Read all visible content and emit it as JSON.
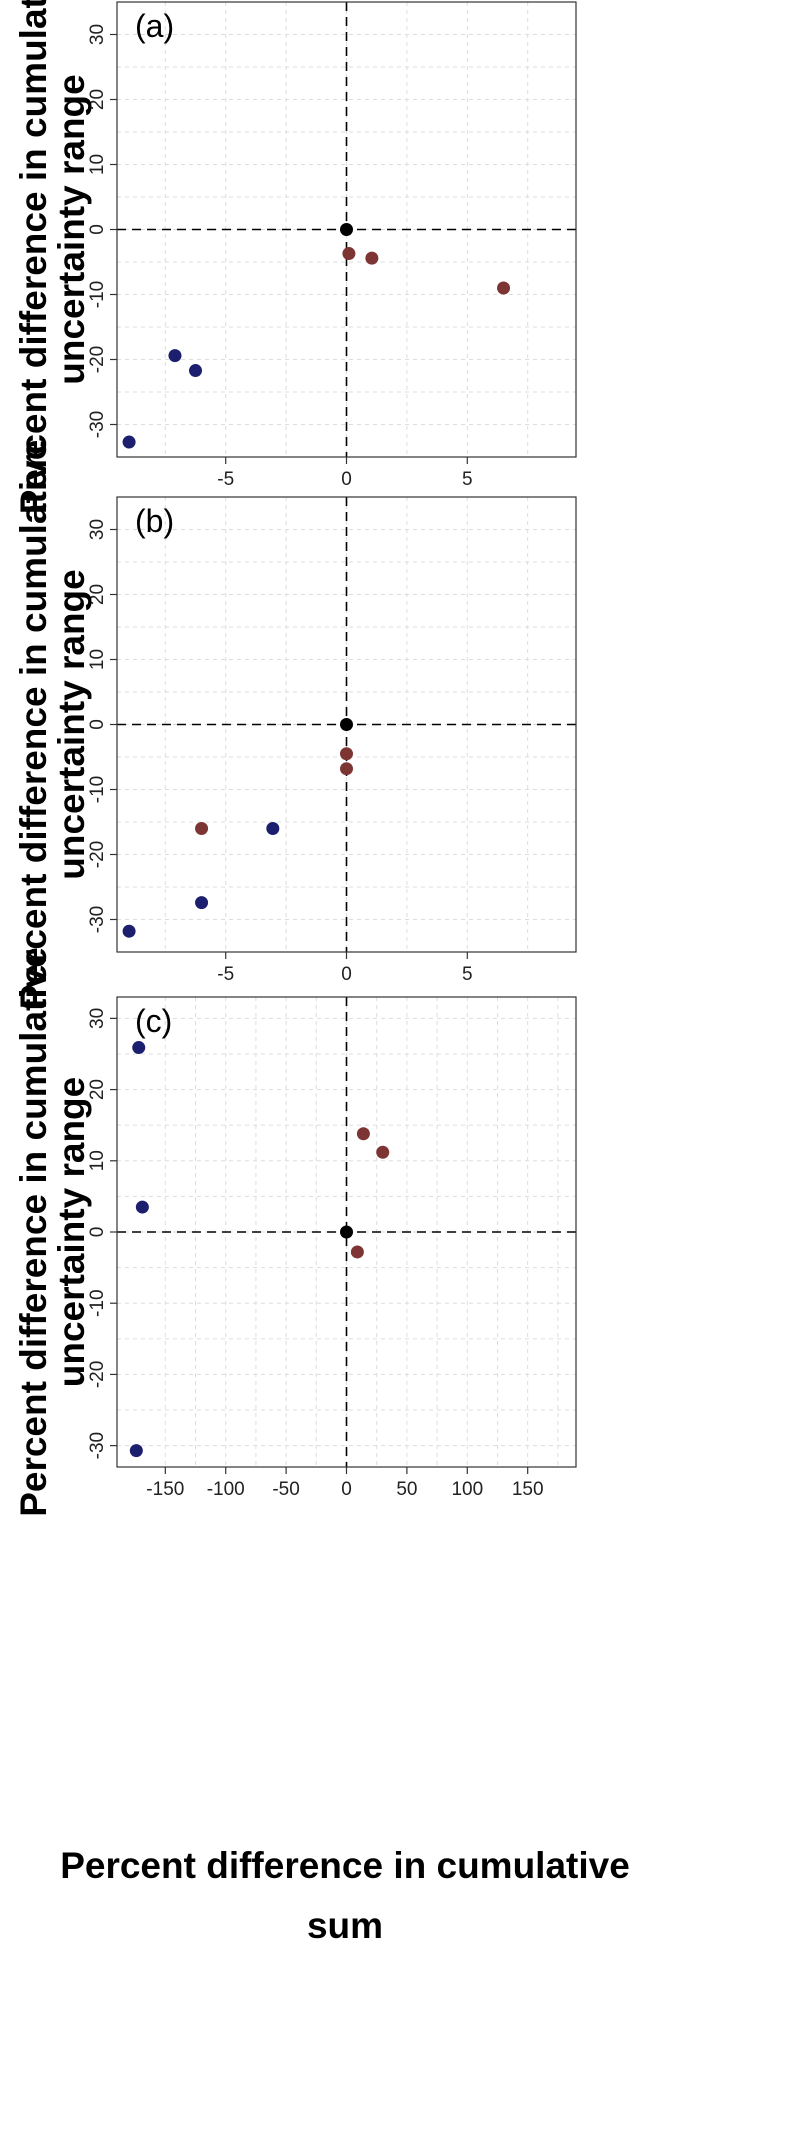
{
  "figure": {
    "xlabel_lines": [
      "Percent difference in cumulative",
      "sum"
    ]
  },
  "colors": {
    "blue": "#1c1f6e",
    "red": "#7d3533",
    "black": "#000000"
  },
  "chart_data": [
    {
      "type": "scatter",
      "panel_label": "(a)",
      "ylabel_lines": [
        "Percent difference in cumulative",
        "uncertainty range"
      ],
      "xlim": [
        -9.5,
        9.5
      ],
      "ylim": [
        -35,
        35
      ],
      "xticks": [
        -5,
        0,
        5
      ],
      "yticks": [
        -30,
        -20,
        -10,
        0,
        10,
        20,
        30
      ],
      "xgrid": [
        -7.5,
        -5,
        -2.5,
        0,
        2.5,
        5,
        7.5
      ],
      "ygrid": [
        -30,
        -25,
        -20,
        -15,
        -10,
        -5,
        0,
        5,
        10,
        15,
        20,
        25,
        30
      ],
      "points": [
        {
          "x": 0,
          "y": 0,
          "color": "black"
        },
        {
          "x": 0.1,
          "y": -3.7,
          "color": "red"
        },
        {
          "x": 1.05,
          "y": -4.4,
          "color": "red"
        },
        {
          "x": 6.5,
          "y": -9.0,
          "color": "red"
        },
        {
          "x": -7.1,
          "y": -19.4,
          "color": "blue"
        },
        {
          "x": -6.25,
          "y": -21.7,
          "color": "blue"
        },
        {
          "x": -9.0,
          "y": -32.7,
          "color": "blue"
        }
      ]
    },
    {
      "type": "scatter",
      "panel_label": "(b)",
      "ylabel_lines": [
        "Percent difference in cumulative",
        "uncertainty range"
      ],
      "xlim": [
        -9.5,
        9.5
      ],
      "ylim": [
        -35,
        35
      ],
      "xticks": [
        -5,
        0,
        5
      ],
      "yticks": [
        -30,
        -20,
        -10,
        0,
        10,
        20,
        30
      ],
      "xgrid": [
        -7.5,
        -5,
        -2.5,
        0,
        2.5,
        5,
        7.5
      ],
      "ygrid": [
        -30,
        -25,
        -20,
        -15,
        -10,
        -5,
        0,
        5,
        10,
        15,
        20,
        25,
        30
      ],
      "points": [
        {
          "x": 0,
          "y": 0,
          "color": "black"
        },
        {
          "x": 0,
          "y": -4.5,
          "color": "red"
        },
        {
          "x": 0,
          "y": -6.8,
          "color": "red"
        },
        {
          "x": -6.0,
          "y": -16.0,
          "color": "red"
        },
        {
          "x": -3.05,
          "y": -16.0,
          "color": "blue"
        },
        {
          "x": -6.0,
          "y": -27.4,
          "color": "blue"
        },
        {
          "x": -9.0,
          "y": -31.8,
          "color": "blue"
        }
      ]
    },
    {
      "type": "scatter",
      "panel_label": "(c)",
      "ylabel_lines": [
        "Percent difference in cumulative",
        "uncertainty range"
      ],
      "xlim": [
        -190,
        190
      ],
      "ylim": [
        -33,
        33
      ],
      "xticks": [
        -150,
        -100,
        -50,
        0,
        50,
        100,
        150
      ],
      "yticks": [
        -30,
        -20,
        -10,
        0,
        10,
        20,
        30
      ],
      "xgrid": [
        -150,
        -125,
        -100,
        -75,
        -50,
        -25,
        0,
        25,
        50,
        75,
        100,
        125,
        150,
        175
      ],
      "ygrid": [
        -30,
        -25,
        -20,
        -15,
        -10,
        -5,
        0,
        5,
        10,
        15,
        20,
        25,
        30
      ],
      "points": [
        {
          "x": 0,
          "y": 0,
          "color": "black"
        },
        {
          "x": 14,
          "y": 13.8,
          "color": "red"
        },
        {
          "x": 30,
          "y": 11.2,
          "color": "red"
        },
        {
          "x": 9,
          "y": -2.8,
          "color": "red"
        },
        {
          "x": -172,
          "y": 25.9,
          "color": "blue"
        },
        {
          "x": -169,
          "y": 3.5,
          "color": "blue"
        },
        {
          "x": -174,
          "y": -30.7,
          "color": "blue"
        }
      ]
    }
  ]
}
